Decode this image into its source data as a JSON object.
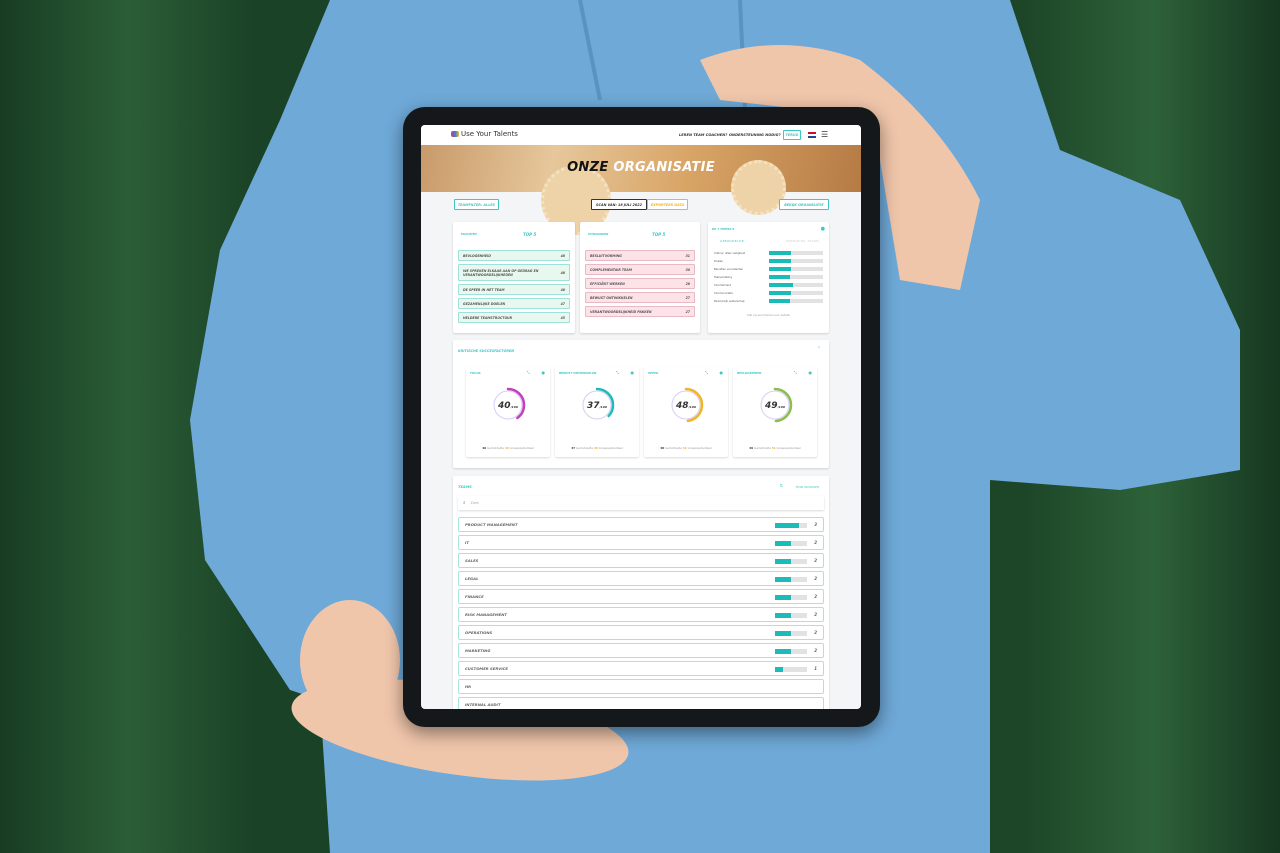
{
  "navbar": {
    "logo": "Use Your Talents",
    "links": [
      "LEREN TEAM COACHEN?",
      "ONDERSTEUNING NODIG?"
    ],
    "back_button": "TERUG",
    "flag": "nl-flag",
    "menu_icon": "hamburger-icon"
  },
  "banner": {
    "title_bold": "ONZE",
    "title_rest": "ORGANISATIE"
  },
  "toolbar": {
    "team_filter": "TEAMFILTER: ALLES",
    "scan_date": "SCAN VAN: 18 JULI 2022",
    "export": "EXPORTEER DATA",
    "view_org": "BEKIJK ORGANISATIE"
  },
  "strengths": {
    "label": "KRACHTEN",
    "title": "TOP 5",
    "items": [
      {
        "name": "BEVLOGENHEID",
        "score": "48"
      },
      {
        "name": "WE SPREKEN ELKAAR AAN OP GEDRAG EN VERANTWOORDELIJKHEDEN",
        "score": "48"
      },
      {
        "name": "DE SPEER IN HET TEAM",
        "score": "48"
      },
      {
        "name": "GEZAMENLIJKE DOELEN",
        "score": "47"
      },
      {
        "name": "HELDERE TEAMSTRUCTUUR",
        "score": "45"
      }
    ]
  },
  "challenges": {
    "label": "UITDAGINGEN",
    "title": "TOP 5",
    "items": [
      {
        "name": "BESLUITVORMING",
        "score": "31"
      },
      {
        "name": "COMPLEMENTAIR TEAM",
        "score": "30"
      },
      {
        "name": "EFFICIËNT WERKEN",
        "score": "28"
      },
      {
        "name": "BEWUST ONTWIKKELEN",
        "score": "27"
      },
      {
        "name": "VERANTWOORDELIJKHEID PAKKEN",
        "score": "27"
      }
    ]
  },
  "themes": {
    "title": "DE 7 THEMA'S",
    "tabs": [
      "GEMIDDELDE",
      "SPREIDING TEAMS"
    ],
    "items": [
      {
        "name": "Cultuur: sfeer veiligheid",
        "value": 0.4
      },
      {
        "name": "Doelen",
        "value": 0.41
      },
      {
        "name": "Benutten van talenten",
        "value": 0.4
      },
      {
        "name": "Taakverdeling",
        "value": 0.39
      },
      {
        "name": "Commitment",
        "value": 0.44
      },
      {
        "name": "Communicatie",
        "value": 0.4
      },
      {
        "name": "Persoonlijk Leiderschap",
        "value": 0.38
      }
    ],
    "hint": "Klik op een thema voor details"
  },
  "ksf": {
    "title": "KRITISCHE SUCCESFACTOREN",
    "cards": [
      {
        "name": "FOCUS",
        "value": 40,
        "max": "/100",
        "avg": "40",
        "avg_label": "Gemiddelde",
        "potential": "46",
        "potential_label": "Groepspotentieel",
        "color": "#c040c0"
      },
      {
        "name": "BEWUST ONTWIKKELEN",
        "value": 37,
        "max": "/100",
        "avg": "37",
        "avg_label": "Gemiddelde",
        "potential": "48",
        "potential_label": "Groepspotentieel",
        "color": "#1bbcb8"
      },
      {
        "name": "SPEER",
        "value": 48,
        "max": "/100",
        "avg": "48",
        "avg_label": "Gemiddelde",
        "potential": "52",
        "potential_label": "Groepspotentieel",
        "color": "#f0b429"
      },
      {
        "name": "BEVLOGENHEID",
        "value": 49,
        "max": "/100",
        "avg": "49",
        "avg_label": "Gemiddelde",
        "potential": "51",
        "potential_label": "Groepspotentieel",
        "color": "#8bbf4a"
      }
    ]
  },
  "teams": {
    "title": "TEAMS",
    "add_button": "TEAM INVOEGEN",
    "search_placeholder": "Zoek",
    "items": [
      {
        "name": "PRODUCT MANAGEMENT",
        "fill": 0.75,
        "count": "3"
      },
      {
        "name": "IT",
        "fill": 0.5,
        "count": "2"
      },
      {
        "name": "SALES",
        "fill": 0.5,
        "count": "2"
      },
      {
        "name": "LEGAL",
        "fill": 0.5,
        "count": "2"
      },
      {
        "name": "FINANCE",
        "fill": 0.5,
        "count": "2"
      },
      {
        "name": "RISK MANAGEMENT",
        "fill": 0.5,
        "count": "2"
      },
      {
        "name": "OPERATIONS",
        "fill": 0.5,
        "count": "2"
      },
      {
        "name": "MARKETING",
        "fill": 0.5,
        "count": "2"
      },
      {
        "name": "CUSTOMER SERVICE",
        "fill": 0.25,
        "count": "1"
      },
      {
        "name": "HR",
        "fill": null,
        "count": null
      },
      {
        "name": "INTERNAL AUDIT",
        "fill": null,
        "count": null
      }
    ]
  },
  "colors": {
    "accent": "#3cc8c8",
    "bar": "#1bbcb8",
    "curtain": "#1f4a2a",
    "hoodie": "#6fa9d8"
  }
}
